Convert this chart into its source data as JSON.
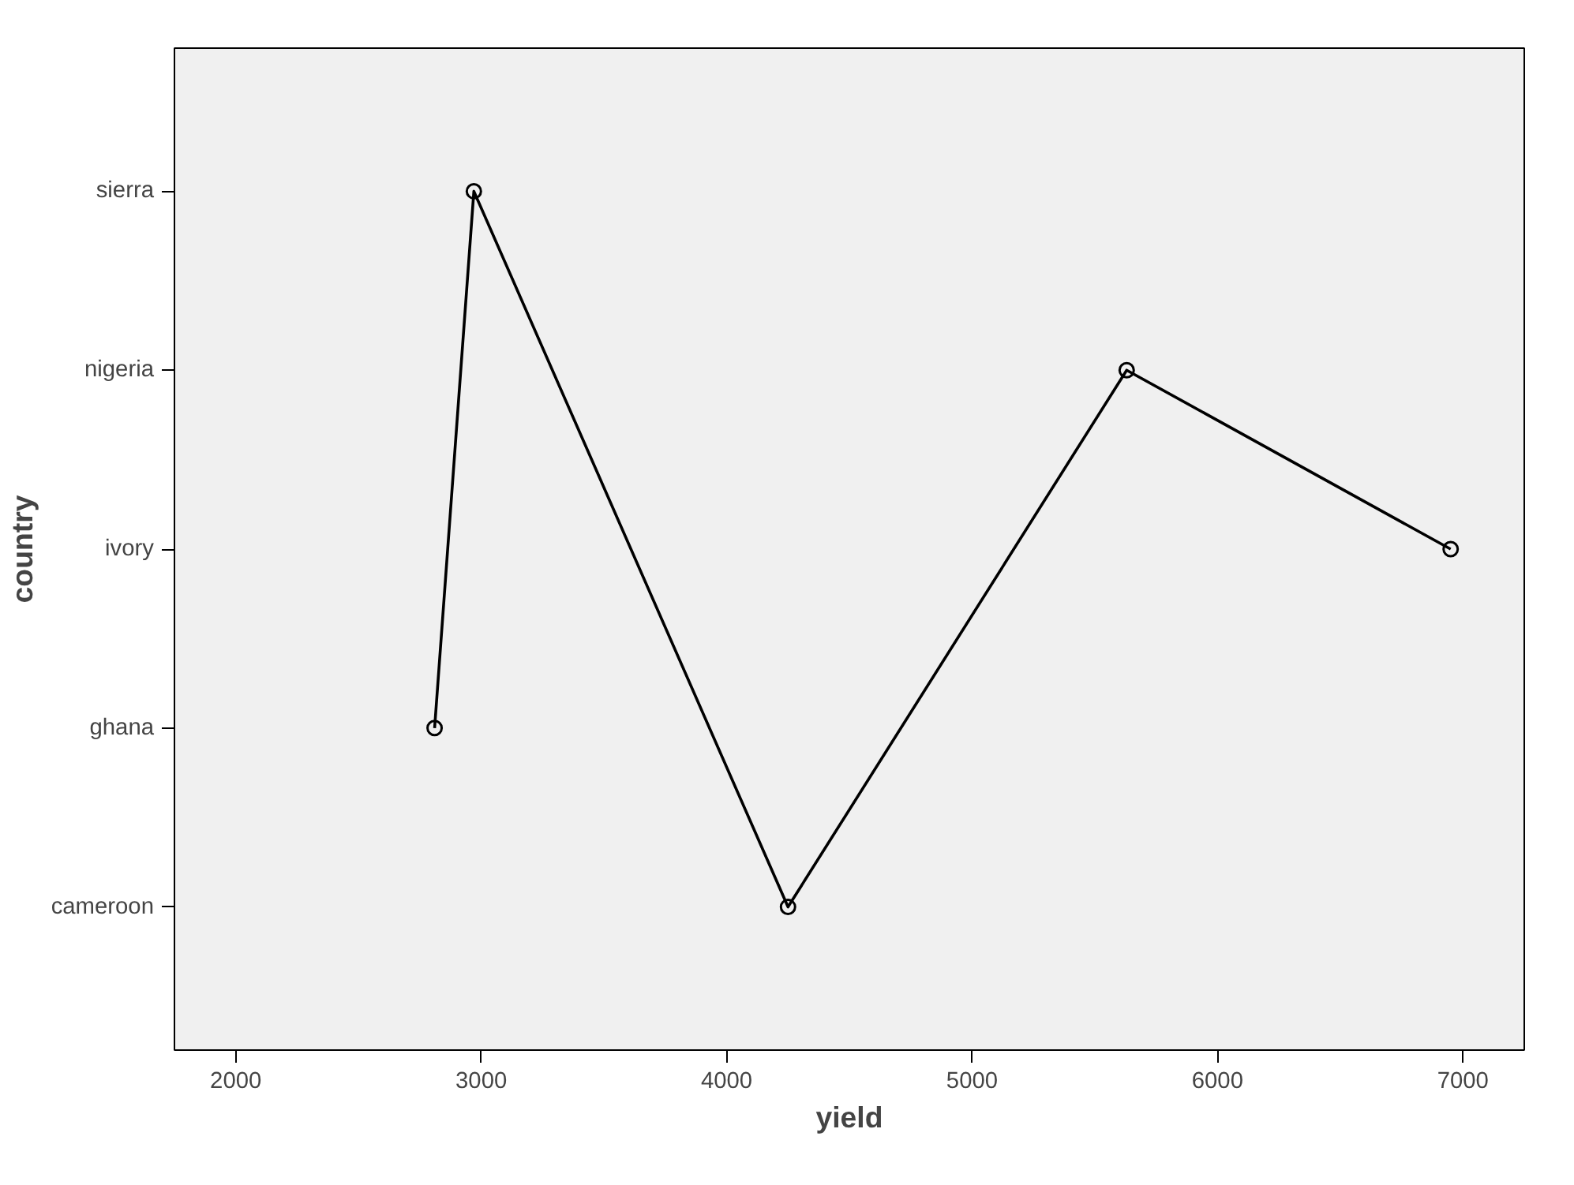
{
  "chart_data": {
    "type": "line",
    "orientation": "horizontal",
    "xlabel": "yield",
    "ylabel": "country",
    "categories": [
      "sierra",
      "nigeria",
      "ivory",
      "ghana",
      "cameroon"
    ],
    "series": [
      {
        "color": "#000000",
        "x": [
          "ghana",
          "sierra",
          "cameroon",
          "nigeria",
          "ivory"
        ],
        "values": [
          2810,
          2970,
          4250,
          5630,
          6950
        ]
      }
    ],
    "xlim": [
      1750,
      7250
    ],
    "xticks": [
      2000,
      3000,
      4000,
      5000,
      6000,
      7000
    ],
    "marker": "circle",
    "grid": false
  }
}
